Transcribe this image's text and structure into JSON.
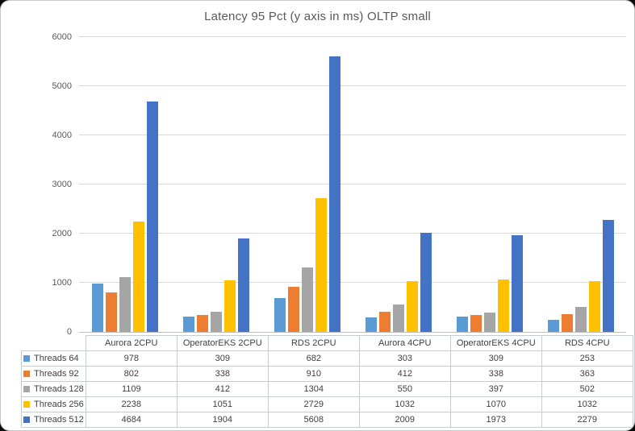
{
  "window": {
    "background": "#ffffff",
    "corner_background": "#0b0b0b"
  },
  "chart_data": {
    "type": "bar",
    "title": "Latency 95 Pct (y axis in ms) OLTP small",
    "xlabel": "",
    "ylabel": "",
    "categories": [
      "Aurora 2CPU",
      "OperatorEKS 2CPU",
      "RDS 2CPU",
      "Aurora 4CPU",
      "OperatorEKS 4CPU",
      "RDS 4CPU"
    ],
    "series": [
      {
        "name": "Threads 64",
        "color": "#5B9BD5",
        "values": [
          978,
          309,
          682,
          303,
          309,
          253
        ]
      },
      {
        "name": "Threads 92",
        "color": "#ED7D31",
        "values": [
          802,
          338,
          910,
          412,
          338,
          363
        ]
      },
      {
        "name": "Threads 128",
        "color": "#A5A5A5",
        "values": [
          1109,
          412,
          1304,
          550,
          397,
          502
        ]
      },
      {
        "name": "Threads 256",
        "color": "#FFC000",
        "values": [
          2238,
          1051,
          2729,
          1032,
          1070,
          1032
        ]
      },
      {
        "name": "Threads 512",
        "color": "#4472C4",
        "values": [
          4684,
          1904,
          5608,
          2009,
          1973,
          2279
        ]
      }
    ],
    "ylim": [
      0,
      6000
    ],
    "y_tick_interval": 1000,
    "y_tick_labels": [
      "0",
      "1000",
      "2000",
      "3000",
      "4000",
      "5000",
      "6000"
    ],
    "grid": true,
    "legend_position": "data-table-left-column",
    "data_table_shown": true,
    "gridline_color": "#d9d9d9",
    "axis_line_color": "#bfbfbf",
    "text_color": "#595959"
  }
}
